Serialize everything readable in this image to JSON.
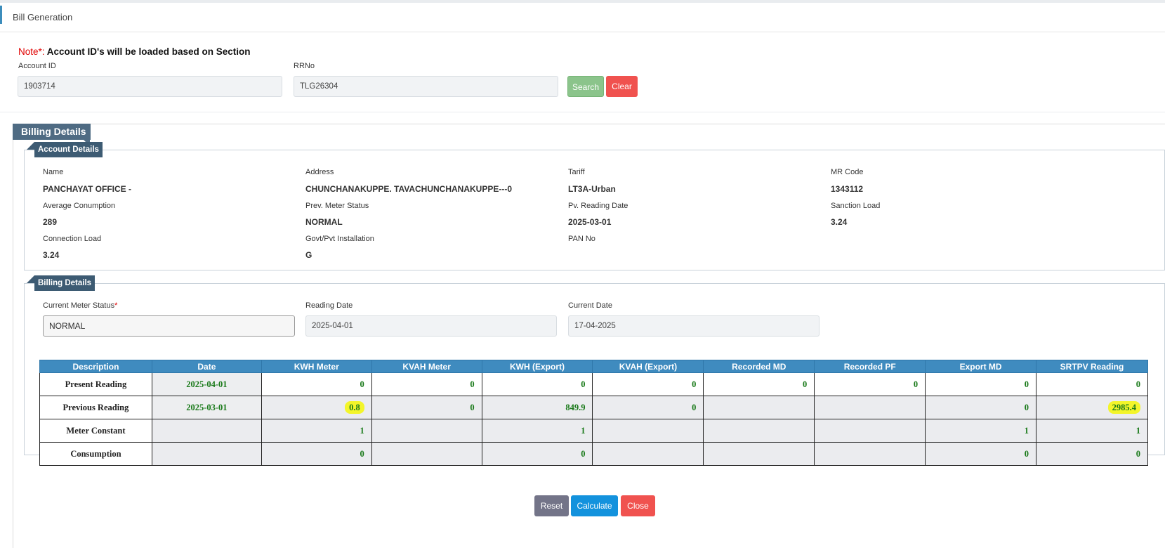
{
  "header": {
    "title": "Bill Generation"
  },
  "note": {
    "prefix": "Note*:",
    "text": " Account ID's will be loaded based on Section"
  },
  "search": {
    "account_id_label": "Account ID",
    "account_id_value": "1903714",
    "rrno_label": "RRNo",
    "rrno_value": "TLG26304",
    "search_label": "Search",
    "clear_label": "Clear"
  },
  "billing_title": "Billing Details",
  "account_details": {
    "title": "Account Details",
    "fields": [
      {
        "label": "Name",
        "value": "PANCHAYAT OFFICE -"
      },
      {
        "label": "Address",
        "value": "CHUNCHANAKUPPE. TAVACHUNCHANAKUPPE---0"
      },
      {
        "label": "Tariff",
        "value": "LT3A-Urban"
      },
      {
        "label": "MR Code",
        "value": "1343112"
      },
      {
        "label": "Average Conumption",
        "value": "289"
      },
      {
        "label": "Prev. Meter Status",
        "value": "NORMAL"
      },
      {
        "label": "Pv. Reading Date",
        "value": "2025-03-01"
      },
      {
        "label": "Sanction Load",
        "value": "3.24"
      },
      {
        "label": "Connection Load",
        "value": "3.24"
      },
      {
        "label": "Govt/Pvt Installation",
        "value": "G"
      },
      {
        "label": "PAN No",
        "value": ""
      }
    ]
  },
  "billing_details": {
    "title": "Billing Details",
    "meter_status_label": "Current Meter Status",
    "meter_status_required": "*",
    "meter_status_value": "NORMAL",
    "reading_date_label": "Reading Date",
    "reading_date_value": "2025-04-01",
    "current_date_label": "Current Date",
    "current_date_value": "17-04-2025"
  },
  "table": {
    "headers": [
      "Description",
      "Date",
      "KWH Meter",
      "KVAH Meter",
      "KWH (Export)",
      "KVAH (Export)",
      "Recorded MD",
      "Recorded PF",
      "Export MD",
      "SRTPV Reading"
    ],
    "rows": [
      {
        "cells": [
          "Present Reading",
          "2025-04-01",
          "0",
          "0",
          "0",
          "0",
          "0",
          "0",
          "0",
          "0"
        ]
      },
      {
        "cells": [
          "Previous Reading",
          "2025-03-01",
          "0.8",
          "0",
          "849.9",
          "0",
          "",
          "",
          "0",
          "2985.4"
        ]
      },
      {
        "cells": [
          "Meter Constant",
          "",
          "1",
          "",
          "1",
          "",
          "",
          "",
          "1",
          "1"
        ]
      },
      {
        "cells": [
          "Consumption",
          "",
          "0",
          "",
          "0",
          "",
          "",
          "",
          "0",
          "0"
        ]
      }
    ],
    "highlight_color": "#f3f52a"
  },
  "actions": {
    "reset_label": "Reset",
    "calculate_label": "Calculate",
    "close_label": "Close"
  }
}
